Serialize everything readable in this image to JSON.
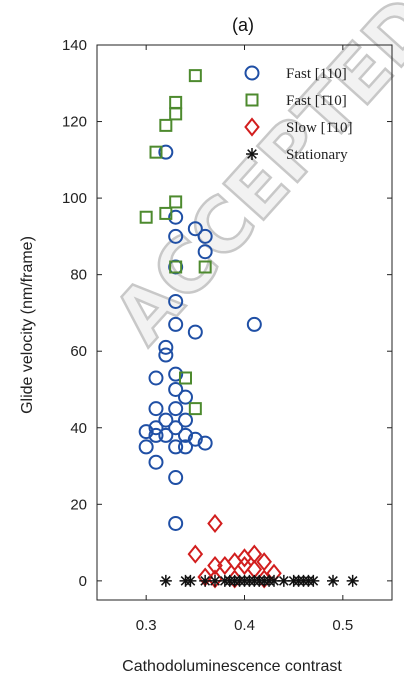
{
  "chart_data": {
    "type": "scatter",
    "panel_label": "(a)",
    "xlabel": "Cathodoluminescence contrast",
    "ylabel": "Glide velocity (nm/frame)",
    "xlim": [
      0.25,
      0.55
    ],
    "ylim": [
      -5,
      140
    ],
    "x_ticks": [
      0.3,
      0.4,
      0.5
    ],
    "x_tick_labels": [
      "0.3",
      "0.4",
      "0.5"
    ],
    "y_ticks": [
      0,
      20,
      40,
      60,
      80,
      100,
      120,
      140
    ],
    "y_tick_labels": [
      "0",
      "20",
      "40",
      "60",
      "80",
      "100",
      "120",
      "140"
    ],
    "grid": false,
    "legend_position": "top-right",
    "watermark": "ACCEPTED",
    "series": [
      {
        "name": "Fast [110]",
        "marker": "circle",
        "color": "#1f4fa5",
        "points": [
          [
            0.32,
            112
          ],
          [
            0.33,
            95
          ],
          [
            0.35,
            92
          ],
          [
            0.33,
            90
          ],
          [
            0.36,
            90
          ],
          [
            0.36,
            86
          ],
          [
            0.33,
            82
          ],
          [
            0.33,
            73
          ],
          [
            0.33,
            67
          ],
          [
            0.35,
            65
          ],
          [
            0.41,
            67
          ],
          [
            0.32,
            61
          ],
          [
            0.32,
            59
          ],
          [
            0.33,
            54
          ],
          [
            0.31,
            53
          ],
          [
            0.33,
            50
          ],
          [
            0.34,
            48
          ],
          [
            0.31,
            45
          ],
          [
            0.33,
            45
          ],
          [
            0.32,
            42
          ],
          [
            0.34,
            42
          ],
          [
            0.31,
            40
          ],
          [
            0.33,
            40
          ],
          [
            0.3,
            39
          ],
          [
            0.31,
            38
          ],
          [
            0.32,
            38
          ],
          [
            0.34,
            38
          ],
          [
            0.35,
            37
          ],
          [
            0.36,
            36
          ],
          [
            0.3,
            35
          ],
          [
            0.33,
            35
          ],
          [
            0.34,
            35
          ],
          [
            0.31,
            31
          ],
          [
            0.33,
            27
          ],
          [
            0.33,
            15
          ]
        ]
      },
      {
        "name": "Fast [1̄10]",
        "marker": "square",
        "color": "#4d8a2e",
        "points": [
          [
            0.35,
            132
          ],
          [
            0.33,
            125
          ],
          [
            0.33,
            122
          ],
          [
            0.32,
            119
          ],
          [
            0.31,
            112
          ],
          [
            0.33,
            99
          ],
          [
            0.3,
            95
          ],
          [
            0.32,
            96
          ],
          [
            0.33,
            82
          ],
          [
            0.36,
            82
          ],
          [
            0.34,
            53
          ],
          [
            0.35,
            45
          ]
        ]
      },
      {
        "name": "Slow [1̄10]",
        "marker": "diamond",
        "color": "#d21e1e",
        "points": [
          [
            0.37,
            15
          ],
          [
            0.35,
            7
          ],
          [
            0.41,
            7
          ],
          [
            0.4,
            6
          ],
          [
            0.39,
            5
          ],
          [
            0.42,
            5
          ],
          [
            0.37,
            4
          ],
          [
            0.38,
            4
          ],
          [
            0.4,
            4
          ],
          [
            0.41,
            3
          ],
          [
            0.43,
            2
          ],
          [
            0.36,
            1
          ],
          [
            0.37,
            0.5
          ],
          [
            0.39,
            0.5
          ],
          [
            0.42,
            0.5
          ]
        ]
      },
      {
        "name": "Stationary",
        "marker": "asterisk",
        "color": "#111111",
        "points": [
          [
            0.32,
            0
          ],
          [
            0.34,
            0
          ],
          [
            0.345,
            0
          ],
          [
            0.36,
            0
          ],
          [
            0.37,
            0
          ],
          [
            0.38,
            0
          ],
          [
            0.385,
            0
          ],
          [
            0.39,
            0
          ],
          [
            0.395,
            0
          ],
          [
            0.4,
            0
          ],
          [
            0.405,
            0
          ],
          [
            0.41,
            0
          ],
          [
            0.415,
            0
          ],
          [
            0.42,
            0
          ],
          [
            0.425,
            0
          ],
          [
            0.43,
            0
          ],
          [
            0.44,
            0
          ],
          [
            0.45,
            0
          ],
          [
            0.455,
            0
          ],
          [
            0.46,
            0
          ],
          [
            0.465,
            0
          ],
          [
            0.47,
            0
          ],
          [
            0.49,
            0
          ],
          [
            0.51,
            0
          ]
        ]
      }
    ]
  }
}
